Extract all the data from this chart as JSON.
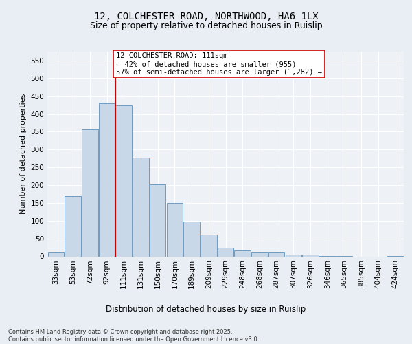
{
  "title1": "12, COLCHESTER ROAD, NORTHWOOD, HA6 1LX",
  "title2": "Size of property relative to detached houses in Ruislip",
  "xlabel": "Distribution of detached houses by size in Ruislip",
  "ylabel": "Number of detached properties",
  "categories": [
    "33sqm",
    "53sqm",
    "72sqm",
    "92sqm",
    "111sqm",
    "131sqm",
    "150sqm",
    "170sqm",
    "189sqm",
    "209sqm",
    "229sqm",
    "248sqm",
    "268sqm",
    "287sqm",
    "307sqm",
    "326sqm",
    "346sqm",
    "365sqm",
    "385sqm",
    "404sqm",
    "424sqm"
  ],
  "values": [
    10,
    170,
    357,
    430,
    425,
    277,
    202,
    149,
    98,
    60,
    25,
    17,
    10,
    10,
    5,
    4,
    1,
    1,
    0,
    0,
    1
  ],
  "bar_color": "#c8d8e8",
  "bar_edge_color": "#6090b8",
  "vline_bar_index": 4,
  "vline_color": "#cc0000",
  "annotation_text": "12 COLCHESTER ROAD: 111sqm\n← 42% of detached houses are smaller (955)\n57% of semi-detached houses are larger (1,282) →",
  "annotation_box_color": "#ffffff",
  "annotation_box_edge": "#cc0000",
  "bg_color": "#e8eef4",
  "plot_bg_color": "#eef2f6",
  "grid_color": "#ffffff",
  "ylim": [
    0,
    575
  ],
  "yticks": [
    0,
    50,
    100,
    150,
    200,
    250,
    300,
    350,
    400,
    450,
    500,
    550
  ],
  "footnote": "Contains HM Land Registry data © Crown copyright and database right 2025.\nContains public sector information licensed under the Open Government Licence v3.0.",
  "title1_fontsize": 10,
  "title2_fontsize": 9,
  "xlabel_fontsize": 8.5,
  "ylabel_fontsize": 8,
  "tick_fontsize": 7.5,
  "annot_fontsize": 7.5,
  "footnote_fontsize": 6
}
